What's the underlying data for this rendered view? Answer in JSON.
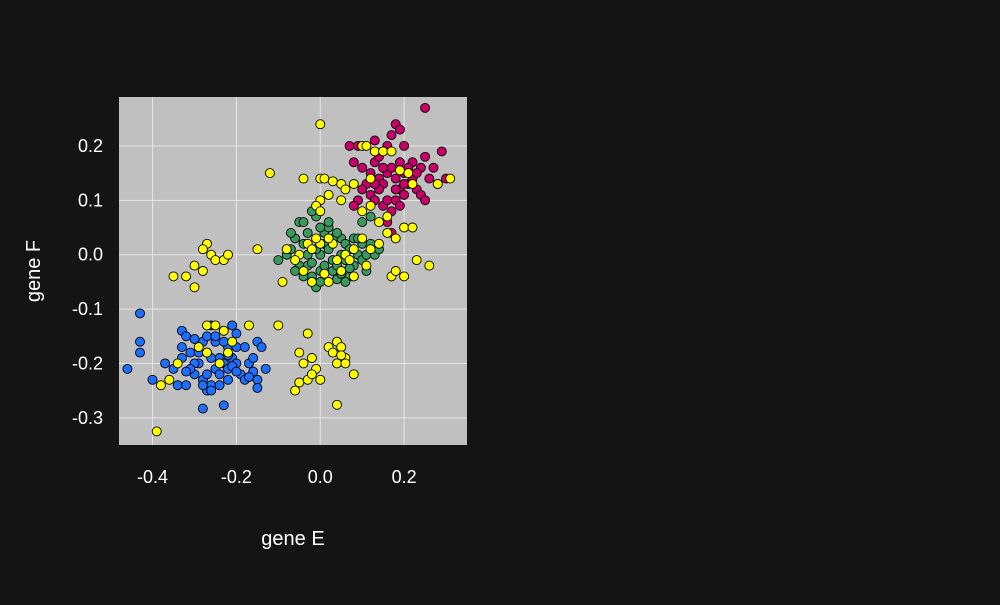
{
  "chart_data": {
    "type": "scatter",
    "title": "",
    "xlabel": "gene E",
    "ylabel": "gene F",
    "xlim": [
      -0.48,
      0.35
    ],
    "ylim": [
      -0.35,
      0.29
    ],
    "xticks": [
      -0.4,
      -0.2,
      0.0,
      0.2
    ],
    "yticks": [
      -0.3,
      -0.2,
      -0.1,
      0.0,
      0.1,
      0.2
    ],
    "xtick_labels": [
      "-0.4",
      "-0.2",
      "0.0",
      "0.2"
    ],
    "ytick_labels": [
      "-0.3",
      "-0.2",
      "-0.1",
      "0.0",
      "0.1",
      "0.2"
    ],
    "grid": true,
    "legend": "none",
    "colors": {
      "background": "#141414",
      "panel": "#c0c0c0",
      "grid": "#e6e6e6",
      "marker_edge": "#000000"
    },
    "series": [
      {
        "color": "#1f6fff",
        "points": [
          [
            -0.43,
            -0.108
          ],
          [
            -0.43,
            -0.16
          ],
          [
            -0.43,
            -0.18
          ],
          [
            -0.46,
            -0.21
          ],
          [
            -0.4,
            -0.23
          ],
          [
            -0.37,
            -0.2
          ],
          [
            -0.35,
            -0.21
          ],
          [
            -0.33,
            -0.14
          ],
          [
            -0.32,
            -0.15
          ],
          [
            -0.33,
            -0.17
          ],
          [
            -0.33,
            -0.19
          ],
          [
            -0.31,
            -0.18
          ],
          [
            -0.34,
            -0.24
          ],
          [
            -0.32,
            -0.24
          ],
          [
            -0.3,
            -0.22
          ],
          [
            -0.29,
            -0.2
          ],
          [
            -0.28,
            -0.16
          ],
          [
            -0.27,
            -0.15
          ],
          [
            -0.27,
            -0.18
          ],
          [
            -0.26,
            -0.13
          ],
          [
            -0.25,
            -0.16
          ],
          [
            -0.24,
            -0.19
          ],
          [
            -0.23,
            -0.14
          ],
          [
            -0.22,
            -0.17
          ],
          [
            -0.21,
            -0.13
          ],
          [
            -0.2,
            -0.17
          ],
          [
            -0.28,
            -0.23
          ],
          [
            -0.27,
            -0.25
          ],
          [
            -0.26,
            -0.24
          ],
          [
            -0.25,
            -0.21
          ],
          [
            -0.24,
            -0.22
          ],
          [
            -0.23,
            -0.2
          ],
          [
            -0.22,
            -0.21
          ],
          [
            -0.21,
            -0.19
          ],
          [
            -0.2,
            -0.2
          ],
          [
            -0.19,
            -0.22
          ],
          [
            -0.18,
            -0.23
          ],
          [
            -0.17,
            -0.2
          ],
          [
            -0.16,
            -0.19
          ],
          [
            -0.15,
            -0.16
          ],
          [
            -0.14,
            -0.17
          ],
          [
            -0.15,
            -0.23
          ],
          [
            -0.15,
            -0.245
          ],
          [
            -0.13,
            -0.21
          ],
          [
            -0.28,
            -0.283
          ],
          [
            -0.23,
            -0.277
          ],
          [
            -0.3,
            -0.2
          ],
          [
            -0.29,
            -0.18
          ],
          [
            -0.31,
            -0.21
          ],
          [
            -0.26,
            -0.19
          ],
          [
            -0.24,
            -0.24
          ],
          [
            -0.22,
            -0.23
          ],
          [
            -0.27,
            -0.22
          ],
          [
            -0.25,
            -0.15
          ],
          [
            -0.23,
            -0.16
          ],
          [
            -0.2,
            -0.145
          ],
          [
            -0.21,
            -0.205
          ],
          [
            -0.16,
            -0.215
          ],
          [
            -0.3,
            -0.155
          ],
          [
            -0.32,
            -0.215
          ],
          [
            -0.28,
            -0.24
          ],
          [
            -0.26,
            -0.25
          ],
          [
            -0.2,
            -0.215
          ],
          [
            -0.22,
            -0.185
          ],
          [
            -0.18,
            -0.17
          ],
          [
            -0.17,
            -0.225
          ]
        ]
      },
      {
        "color": "#3a9a5e",
        "points": [
          [
            -0.1,
            -0.01
          ],
          [
            -0.08,
            0.0
          ],
          [
            -0.07,
            0.01
          ],
          [
            -0.06,
            0.03
          ],
          [
            -0.05,
            0.06
          ],
          [
            -0.04,
            0.06
          ],
          [
            -0.04,
            0.02
          ],
          [
            -0.03,
            0.0
          ],
          [
            -0.03,
            -0.02
          ],
          [
            -0.02,
            -0.04
          ],
          [
            -0.02,
            -0.05
          ],
          [
            -0.01,
            -0.06
          ],
          [
            0.0,
            -0.05
          ],
          [
            0.0,
            -0.03
          ],
          [
            0.0,
            0.0
          ],
          [
            0.01,
            0.02
          ],
          [
            0.01,
            0.04
          ],
          [
            0.02,
            0.05
          ],
          [
            0.02,
            0.01
          ],
          [
            0.03,
            -0.01
          ],
          [
            0.03,
            -0.03
          ],
          [
            0.04,
            -0.02
          ],
          [
            0.05,
            0.0
          ],
          [
            0.05,
            0.03
          ],
          [
            0.06,
            0.02
          ],
          [
            0.06,
            -0.01
          ],
          [
            0.07,
            -0.04
          ],
          [
            0.07,
            0.01
          ],
          [
            0.08,
            0.03
          ],
          [
            0.08,
            -0.02
          ],
          [
            0.09,
            0.0
          ],
          [
            0.1,
            -0.01
          ],
          [
            0.1,
            0.02
          ],
          [
            0.11,
            0.0
          ],
          [
            0.12,
            0.02
          ],
          [
            0.13,
            0.0
          ],
          [
            0.14,
            0.01
          ],
          [
            0.1,
            0.06
          ],
          [
            0.12,
            0.07
          ],
          [
            -0.01,
            0.07
          ],
          [
            -0.02,
            0.08
          ],
          [
            0.0,
            0.05
          ],
          [
            0.02,
            0.06
          ],
          [
            -0.05,
            -0.02
          ],
          [
            -0.06,
            -0.03
          ],
          [
            -0.04,
            -0.04
          ],
          [
            0.04,
            -0.045
          ],
          [
            0.06,
            -0.05
          ],
          [
            0.08,
            -0.04
          ],
          [
            -0.03,
            0.04
          ],
          [
            0.01,
            -0.02
          ],
          [
            0.03,
            0.03
          ],
          [
            0.05,
            -0.035
          ],
          [
            -0.01,
            0.01
          ],
          [
            0.09,
            0.03
          ],
          [
            0.11,
            -0.03
          ],
          [
            -0.07,
            0.04
          ],
          [
            -0.02,
            -0.015
          ],
          [
            0.04,
            0.04
          ],
          [
            0.07,
            -0.025
          ]
        ]
      },
      {
        "color": "#c8006a",
        "points": [
          [
            0.25,
            0.27
          ],
          [
            0.07,
            0.2
          ],
          [
            0.09,
            0.2
          ],
          [
            0.13,
            0.21
          ],
          [
            0.16,
            0.2
          ],
          [
            0.17,
            0.22
          ],
          [
            0.18,
            0.24
          ],
          [
            0.19,
            0.23
          ],
          [
            0.2,
            0.2
          ],
          [
            0.22,
            0.17
          ],
          [
            0.24,
            0.16
          ],
          [
            0.25,
            0.18
          ],
          [
            0.27,
            0.16
          ],
          [
            0.29,
            0.19
          ],
          [
            0.26,
            0.14
          ],
          [
            0.28,
            0.13
          ],
          [
            0.3,
            0.14
          ],
          [
            0.08,
            0.17
          ],
          [
            0.1,
            0.16
          ],
          [
            0.12,
            0.15
          ],
          [
            0.13,
            0.17
          ],
          [
            0.14,
            0.14
          ],
          [
            0.15,
            0.13
          ],
          [
            0.16,
            0.15
          ],
          [
            0.17,
            0.16
          ],
          [
            0.18,
            0.14
          ],
          [
            0.19,
            0.12
          ],
          [
            0.2,
            0.15
          ],
          [
            0.21,
            0.13
          ],
          [
            0.22,
            0.14
          ],
          [
            0.23,
            0.12
          ],
          [
            0.24,
            0.11
          ],
          [
            0.25,
            0.1
          ],
          [
            0.11,
            0.13
          ],
          [
            0.12,
            0.11
          ],
          [
            0.13,
            0.1
          ],
          [
            0.14,
            0.12
          ],
          [
            0.15,
            0.09
          ],
          [
            0.16,
            0.1
          ],
          [
            0.17,
            0.08
          ],
          [
            0.18,
            0.1
          ],
          [
            0.19,
            0.09
          ],
          [
            0.2,
            0.11
          ],
          [
            0.16,
            0.06
          ],
          [
            0.17,
            0.04
          ],
          [
            0.09,
            0.1
          ],
          [
            0.08,
            0.09
          ],
          [
            0.1,
            0.12
          ],
          [
            0.21,
            0.16
          ],
          [
            0.23,
            0.15
          ],
          [
            0.15,
            0.16
          ],
          [
            0.14,
            0.18
          ],
          [
            0.13,
            0.13
          ],
          [
            0.18,
            0.12
          ],
          [
            0.19,
            0.17
          ],
          [
            0.2,
            0.13
          ]
        ]
      },
      {
        "color": "#ffff00",
        "points": [
          [
            0.0,
            0.24
          ],
          [
            -0.12,
            0.15
          ],
          [
            -0.04,
            0.14
          ],
          [
            0.0,
            0.14
          ],
          [
            0.01,
            0.14
          ],
          [
            0.05,
            0.13
          ],
          [
            0.06,
            0.12
          ],
          [
            0.08,
            0.13
          ],
          [
            0.1,
            0.2
          ],
          [
            0.11,
            0.2
          ],
          [
            0.13,
            0.19
          ],
          [
            0.15,
            0.19
          ],
          [
            0.17,
            0.19
          ],
          [
            0.21,
            0.15
          ],
          [
            0.22,
            0.13
          ],
          [
            0.28,
            0.13
          ],
          [
            0.31,
            0.14
          ],
          [
            0.02,
            0.11
          ],
          [
            0.0,
            0.1
          ],
          [
            -0.01,
            0.09
          ],
          [
            0.0,
            0.08
          ],
          [
            0.05,
            0.1
          ],
          [
            0.1,
            0.08
          ],
          [
            0.12,
            0.09
          ],
          [
            0.14,
            0.06
          ],
          [
            0.16,
            0.07
          ],
          [
            0.16,
            0.04
          ],
          [
            0.2,
            0.05
          ],
          [
            0.22,
            0.05
          ],
          [
            0.18,
            0.03
          ],
          [
            0.14,
            0.02
          ],
          [
            0.12,
            0.01
          ],
          [
            0.1,
            0.03
          ],
          [
            0.08,
            0.01
          ],
          [
            0.06,
            0.0
          ],
          [
            0.04,
            -0.01
          ],
          [
            0.05,
            -0.03
          ],
          [
            0.03,
            0.02
          ],
          [
            0.02,
            0.03
          ],
          [
            0.0,
            0.02
          ],
          [
            -0.01,
            0.03
          ],
          [
            -0.03,
            0.02
          ],
          [
            -0.02,
            0.01
          ],
          [
            -0.05,
            0.0
          ],
          [
            -0.06,
            -0.01
          ],
          [
            -0.08,
            0.01
          ],
          [
            -0.15,
            0.01
          ],
          [
            -0.09,
            -0.05
          ],
          [
            -0.02,
            -0.05
          ],
          [
            0.02,
            -0.05
          ],
          [
            0.07,
            -0.01
          ],
          [
            0.11,
            -0.02
          ],
          [
            0.17,
            -0.04
          ],
          [
            0.18,
            -0.03
          ],
          [
            0.2,
            -0.04
          ],
          [
            0.23,
            -0.01
          ],
          [
            0.26,
            -0.02
          ],
          [
            -0.27,
            0.02
          ],
          [
            -0.28,
            0.01
          ],
          [
            -0.26,
            0.0
          ],
          [
            -0.25,
            -0.01
          ],
          [
            -0.23,
            -0.01
          ],
          [
            -0.22,
            0.0
          ],
          [
            -0.3,
            -0.02
          ],
          [
            -0.28,
            -0.03
          ],
          [
            -0.32,
            -0.04
          ],
          [
            -0.35,
            -0.04
          ],
          [
            -0.3,
            -0.06
          ],
          [
            -0.27,
            -0.13
          ],
          [
            -0.25,
            -0.13
          ],
          [
            -0.23,
            -0.14
          ],
          [
            -0.29,
            -0.17
          ],
          [
            -0.27,
            -0.18
          ],
          [
            -0.24,
            -0.2
          ],
          [
            -0.22,
            -0.18
          ],
          [
            -0.21,
            -0.16
          ],
          [
            -0.17,
            -0.13
          ],
          [
            -0.1,
            -0.13
          ],
          [
            -0.34,
            -0.2
          ],
          [
            -0.38,
            -0.24
          ],
          [
            -0.36,
            -0.23
          ],
          [
            -0.39,
            -0.325
          ],
          [
            -0.03,
            -0.145
          ],
          [
            -0.05,
            -0.18
          ],
          [
            -0.04,
            -0.2
          ],
          [
            -0.02,
            -0.19
          ],
          [
            -0.01,
            -0.21
          ],
          [
            -0.03,
            -0.23
          ],
          [
            -0.05,
            -0.235
          ],
          [
            -0.06,
            -0.25
          ],
          [
            -0.02,
            -0.22
          ],
          [
            0.0,
            -0.23
          ],
          [
            0.02,
            -0.17
          ],
          [
            0.03,
            -0.18
          ],
          [
            0.04,
            -0.16
          ],
          [
            0.05,
            -0.17
          ],
          [
            0.06,
            -0.19
          ],
          [
            0.04,
            -0.2
          ],
          [
            0.06,
            -0.2
          ],
          [
            0.08,
            -0.22
          ],
          [
            0.05,
            -0.185
          ],
          [
            0.04,
            -0.276
          ],
          [
            0.08,
            -0.04
          ],
          [
            0.01,
            -0.035
          ],
          [
            -0.04,
            -0.03
          ],
          [
            0.12,
            0.14
          ],
          [
            0.19,
            0.155
          ],
          [
            0.03,
            0.135
          ]
        ]
      }
    ]
  }
}
